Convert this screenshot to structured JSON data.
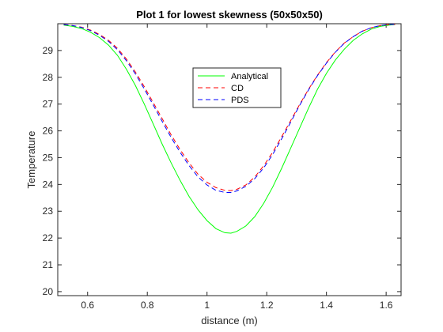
{
  "chart_data": {
    "type": "line",
    "title": "Plot 1 for lowest skewness (50x50x50)",
    "xlabel": "distance (m)",
    "ylabel": "Temperature",
    "xlim": [
      0.5,
      1.65
    ],
    "ylim": [
      19.85,
      30
    ],
    "xticks": [
      0.6,
      0.8,
      1,
      1.2,
      1.4,
      1.6
    ],
    "xtick_labels": [
      "0.6",
      "0.8",
      "1",
      "1.2",
      "1.4",
      "1.6"
    ],
    "yticks": [
      20,
      21,
      22,
      23,
      24,
      25,
      26,
      27,
      28,
      29
    ],
    "ytick_labels": [
      "20",
      "21",
      "22",
      "23",
      "24",
      "25",
      "26",
      "27",
      "28",
      "29"
    ],
    "grid": false,
    "legend_position": "top-center",
    "series": [
      {
        "name": "Analytical",
        "color": "#00ff00",
        "dash": "solid",
        "x": [
          0.52,
          0.55,
          0.58,
          0.61,
          0.64,
          0.67,
          0.7,
          0.73,
          0.76,
          0.79,
          0.82,
          0.85,
          0.88,
          0.91,
          0.94,
          0.97,
          1.0,
          1.03,
          1.06,
          1.08,
          1.1,
          1.13,
          1.16,
          1.19,
          1.22,
          1.25,
          1.28,
          1.31,
          1.34,
          1.37,
          1.4,
          1.43,
          1.46,
          1.49,
          1.52,
          1.55,
          1.58,
          1.61,
          1.63
        ],
        "y": [
          29.95,
          29.9,
          29.82,
          29.68,
          29.48,
          29.2,
          28.82,
          28.3,
          27.7,
          27.0,
          26.25,
          25.5,
          24.8,
          24.15,
          23.55,
          23.05,
          22.65,
          22.35,
          22.2,
          22.18,
          22.25,
          22.45,
          22.8,
          23.3,
          23.9,
          24.6,
          25.35,
          26.1,
          26.85,
          27.55,
          28.15,
          28.65,
          29.05,
          29.38,
          29.62,
          29.8,
          29.9,
          29.95,
          29.97
        ]
      },
      {
        "name": "CD",
        "color": "#ff0000",
        "dash": "dashed",
        "x": [
          0.52,
          0.55,
          0.58,
          0.61,
          0.64,
          0.67,
          0.7,
          0.73,
          0.76,
          0.79,
          0.82,
          0.85,
          0.88,
          0.91,
          0.94,
          0.97,
          1.0,
          1.03,
          1.06,
          1.08,
          1.1,
          1.13,
          1.16,
          1.19,
          1.22,
          1.25,
          1.28,
          1.31,
          1.34,
          1.37,
          1.4,
          1.43,
          1.46,
          1.49,
          1.52,
          1.55,
          1.58,
          1.61,
          1.63
        ],
        "y": [
          29.97,
          29.93,
          29.87,
          29.76,
          29.6,
          29.38,
          29.08,
          28.68,
          28.2,
          27.65,
          27.05,
          26.45,
          25.85,
          25.3,
          24.8,
          24.38,
          24.08,
          23.88,
          23.78,
          23.77,
          23.82,
          23.98,
          24.28,
          24.7,
          25.2,
          25.78,
          26.38,
          26.98,
          27.55,
          28.08,
          28.55,
          28.95,
          29.28,
          29.52,
          29.72,
          29.85,
          29.93,
          29.97,
          29.98
        ]
      },
      {
        "name": "PDS",
        "color": "#0000ff",
        "dash": "dashed",
        "x": [
          0.52,
          0.55,
          0.58,
          0.61,
          0.64,
          0.67,
          0.7,
          0.73,
          0.76,
          0.79,
          0.82,
          0.85,
          0.88,
          0.91,
          0.94,
          0.97,
          1.0,
          1.03,
          1.06,
          1.08,
          1.1,
          1.13,
          1.16,
          1.19,
          1.22,
          1.25,
          1.28,
          1.31,
          1.34,
          1.37,
          1.4,
          1.43,
          1.46,
          1.49,
          1.52,
          1.55,
          1.58,
          1.61,
          1.63
        ],
        "y": [
          29.97,
          29.93,
          29.86,
          29.74,
          29.57,
          29.34,
          29.03,
          28.62,
          28.13,
          27.57,
          26.96,
          26.35,
          25.75,
          25.2,
          24.7,
          24.28,
          23.98,
          23.78,
          23.7,
          23.7,
          23.76,
          23.93,
          24.22,
          24.62,
          25.12,
          25.7,
          26.32,
          26.95,
          27.53,
          28.06,
          28.53,
          28.94,
          29.27,
          29.52,
          29.72,
          29.85,
          29.93,
          29.97,
          29.98
        ]
      }
    ]
  }
}
